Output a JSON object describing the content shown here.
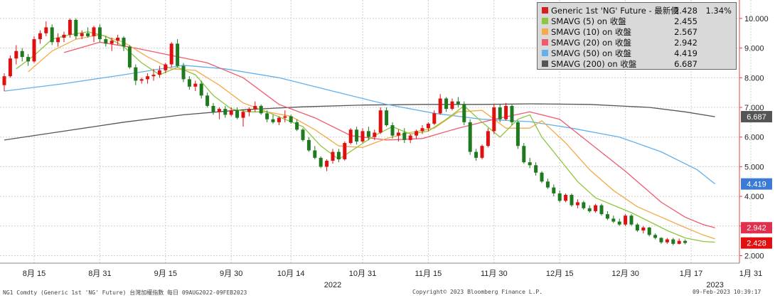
{
  "footer": {
    "left": "NG1 Comdty (Generic 1st 'NG' Future) 台灣加權指數  每日 09AUG2022-09FEB2023",
    "center": "Copyright© 2023 Bloomberg Finance L.P.",
    "right": "09-Feb-2023 10:39:17"
  },
  "legend": [
    {
      "name": "Generic 1st 'NG' Future - 最新價",
      "value": "2.428",
      "extra": "1.34%",
      "color": "#d62020"
    },
    {
      "name": "SMAVG (5)  on 收盤",
      "value": "2.455",
      "color": "#8dc63f"
    },
    {
      "name": "SMAVG (10)  on 收盤",
      "value": "2.567",
      "color": "#f5a94a"
    },
    {
      "name": "SMAVG (20)  on 收盤",
      "value": "2.942",
      "color": "#ef5a6f"
    },
    {
      "name": "SMAVG (50)  on 收盤",
      "value": "4.419",
      "color": "#62b1ee"
    },
    {
      "name": "SMAVG (200)  on 收盤",
      "value": "6.687",
      "color": "#555555"
    }
  ],
  "chart_data": {
    "type": "candlestick",
    "ylim": [
      1.8,
      10.6
    ],
    "yticks": [
      "2.000",
      "3.000",
      "4.000",
      "5.000",
      "6.000",
      "7.000",
      "8.000",
      "9.000",
      "10.000"
    ],
    "ytick_values": [
      2,
      3,
      4,
      5,
      6,
      7,
      8,
      9,
      10
    ],
    "xticks": [
      {
        "label": "8月 15",
        "x": 5
      },
      {
        "label": "8月 31",
        "x": 16
      },
      {
        "label": "9月 15",
        "x": 27
      },
      {
        "label": "9月 30",
        "x": 38
      },
      {
        "label": "10月 14",
        "x": 48
      },
      {
        "label": "10月 31",
        "x": 60
      },
      {
        "label": "11月 15",
        "x": 71
      },
      {
        "label": "11月 30",
        "x": 82
      },
      {
        "label": "12月 15",
        "x": 93
      },
      {
        "label": "12月 30",
        "x": 104
      },
      {
        "label": "1月 17",
        "x": 115
      },
      {
        "label": "1月 31",
        "x": 125
      }
    ],
    "years": [
      {
        "label": "2022",
        "x": 55
      },
      {
        "label": "2023",
        "x": 119
      }
    ],
    "ohlc": [
      [
        7.75,
        8.15,
        7.55,
        8.05
      ],
      [
        8.05,
        8.75,
        8.0,
        8.65
      ],
      [
        8.65,
        9.1,
        8.45,
        8.9
      ],
      [
        8.9,
        9.0,
        8.55,
        8.7
      ],
      [
        8.7,
        8.8,
        8.4,
        8.55
      ],
      [
        8.55,
        9.4,
        8.5,
        9.3
      ],
      [
        9.3,
        9.6,
        9.15,
        9.5
      ],
      [
        9.5,
        9.9,
        9.4,
        9.7
      ],
      [
        9.7,
        9.8,
        9.1,
        9.2
      ],
      [
        9.2,
        9.5,
        9.05,
        9.35
      ],
      [
        9.35,
        9.55,
        9.2,
        9.45
      ],
      [
        9.45,
        10.0,
        9.35,
        9.95
      ],
      [
        9.95,
        10.0,
        9.3,
        9.4
      ],
      [
        9.4,
        9.6,
        9.3,
        9.5
      ],
      [
        9.5,
        9.7,
        9.35,
        9.4
      ],
      [
        9.4,
        9.75,
        9.2,
        9.7
      ],
      [
        9.7,
        9.8,
        9.2,
        9.3
      ],
      [
        9.3,
        9.4,
        9.05,
        9.15
      ],
      [
        9.15,
        9.35,
        8.9,
        9.25
      ],
      [
        9.25,
        9.45,
        9.1,
        9.35
      ],
      [
        9.35,
        9.4,
        8.9,
        9.05
      ],
      [
        9.05,
        9.1,
        8.3,
        8.35
      ],
      [
        8.35,
        8.45,
        7.75,
        7.9
      ],
      [
        7.9,
        8.0,
        7.8,
        7.95
      ],
      [
        7.95,
        8.15,
        7.8,
        8.05
      ],
      [
        8.05,
        8.3,
        7.9,
        8.1
      ],
      [
        8.1,
        8.4,
        8.0,
        8.25
      ],
      [
        8.25,
        8.5,
        8.15,
        8.45
      ],
      [
        8.45,
        9.2,
        8.35,
        9.15
      ],
      [
        9.15,
        9.3,
        8.35,
        8.4
      ],
      [
        8.4,
        8.5,
        7.85,
        7.95
      ],
      [
        7.95,
        8.05,
        7.6,
        7.7
      ],
      [
        7.7,
        7.9,
        7.55,
        7.8
      ],
      [
        7.8,
        7.9,
        7.3,
        7.4
      ],
      [
        7.4,
        7.5,
        7.0,
        7.05
      ],
      [
        7.05,
        7.15,
        6.75,
        6.85
      ],
      [
        6.85,
        7.0,
        6.6,
        6.95
      ],
      [
        6.95,
        7.05,
        6.65,
        6.75
      ],
      [
        6.75,
        7.0,
        6.7,
        6.9
      ],
      [
        6.9,
        7.0,
        6.6,
        6.65
      ],
      [
        6.65,
        6.9,
        6.35,
        6.85
      ],
      [
        6.85,
        7.0,
        6.7,
        6.95
      ],
      [
        6.95,
        7.2,
        6.85,
        7.05
      ],
      [
        7.05,
        7.1,
        6.75,
        6.8
      ],
      [
        6.8,
        6.9,
        6.5,
        6.6
      ],
      [
        6.6,
        6.75,
        6.45,
        6.5
      ],
      [
        6.5,
        6.7,
        6.4,
        6.65
      ],
      [
        6.65,
        6.9,
        6.5,
        6.7
      ],
      [
        6.7,
        6.75,
        6.45,
        6.5
      ],
      [
        6.5,
        6.6,
        6.2,
        6.25
      ],
      [
        6.25,
        6.3,
        5.85,
        5.9
      ],
      [
        5.9,
        6.0,
        5.5,
        5.55
      ],
      [
        5.55,
        5.7,
        5.25,
        5.3
      ],
      [
        5.3,
        5.35,
        4.95,
        5.0
      ],
      [
        5.0,
        5.25,
        4.85,
        5.2
      ],
      [
        5.2,
        5.6,
        5.1,
        5.5
      ],
      [
        5.5,
        5.6,
        5.15,
        5.25
      ],
      [
        5.25,
        5.85,
        5.2,
        5.8
      ],
      [
        5.8,
        6.3,
        5.75,
        6.25
      ],
      [
        6.25,
        6.35,
        5.75,
        5.85
      ],
      [
        5.85,
        6.3,
        5.8,
        6.2
      ],
      [
        6.2,
        6.35,
        5.9,
        6.0
      ],
      [
        6.0,
        6.25,
        5.9,
        6.15
      ],
      [
        6.15,
        7.0,
        6.1,
        6.9
      ],
      [
        6.9,
        7.0,
        6.35,
        6.4
      ],
      [
        6.4,
        6.5,
        5.95,
        6.05
      ],
      [
        6.05,
        6.25,
        5.85,
        6.15
      ],
      [
        6.15,
        6.3,
        5.8,
        5.9
      ],
      [
        5.9,
        6.1,
        5.8,
        6.05
      ],
      [
        6.05,
        6.25,
        5.95,
        6.2
      ],
      [
        6.2,
        6.4,
        6.1,
        6.3
      ],
      [
        6.3,
        6.5,
        6.2,
        6.45
      ],
      [
        6.45,
        6.9,
        6.4,
        6.8
      ],
      [
        6.8,
        7.45,
        6.75,
        7.3
      ],
      [
        7.3,
        7.35,
        6.85,
        6.95
      ],
      [
        6.95,
        7.3,
        6.9,
        7.2
      ],
      [
        7.2,
        7.35,
        7.0,
        7.1
      ],
      [
        7.1,
        7.2,
        6.4,
        6.5
      ],
      [
        6.5,
        6.6,
        5.4,
        5.5
      ],
      [
        5.5,
        5.6,
        5.2,
        5.3
      ],
      [
        5.3,
        5.75,
        5.25,
        5.7
      ],
      [
        5.7,
        6.3,
        5.65,
        6.2
      ],
      [
        6.2,
        7.1,
        6.1,
        7.0
      ],
      [
        7.0,
        7.1,
        6.5,
        6.6
      ],
      [
        6.6,
        7.15,
        6.55,
        7.05
      ],
      [
        7.05,
        7.1,
        6.4,
        6.5
      ],
      [
        6.5,
        6.55,
        5.6,
        5.7
      ],
      [
        5.7,
        5.8,
        5.1,
        5.15
      ],
      [
        5.15,
        5.3,
        4.95,
        5.05
      ],
      [
        5.05,
        5.15,
        4.7,
        4.8
      ],
      [
        4.8,
        4.85,
        4.45,
        4.5
      ],
      [
        4.5,
        4.6,
        4.25,
        4.3
      ],
      [
        4.3,
        4.4,
        4.0,
        4.1
      ],
      [
        4.1,
        4.2,
        3.8,
        3.85
      ],
      [
        3.85,
        4.1,
        3.8,
        4.05
      ],
      [
        4.05,
        4.1,
        3.65,
        3.7
      ],
      [
        3.7,
        3.9,
        3.6,
        3.8
      ],
      [
        3.8,
        3.85,
        3.55,
        3.6
      ],
      [
        3.6,
        3.7,
        3.45,
        3.5
      ],
      [
        3.5,
        3.75,
        3.45,
        3.7
      ],
      [
        3.7,
        3.75,
        3.35,
        3.4
      ],
      [
        3.4,
        3.5,
        3.2,
        3.25
      ],
      [
        3.25,
        3.35,
        3.1,
        3.15
      ],
      [
        3.15,
        3.25,
        3.0,
        3.05
      ],
      [
        3.05,
        3.4,
        3.0,
        3.35
      ],
      [
        3.35,
        3.4,
        3.0,
        3.05
      ],
      [
        3.05,
        3.1,
        2.8,
        2.85
      ],
      [
        2.85,
        3.0,
        2.75,
        2.95
      ],
      [
        2.95,
        2.97,
        2.65,
        2.7
      ],
      [
        2.7,
        2.75,
        2.55,
        2.6
      ],
      [
        2.6,
        2.62,
        2.4,
        2.45
      ],
      [
        2.45,
        2.6,
        2.4,
        2.55
      ],
      [
        2.55,
        2.6,
        2.35,
        2.4
      ],
      [
        2.4,
        2.58,
        2.38,
        2.5
      ],
      [
        2.5,
        2.55,
        2.38,
        2.428
      ]
    ],
    "series": [
      {
        "name": "SMAVG (5)  on 收盤",
        "color": "#8dc63f",
        "values": [
          [
            2,
            8.3
          ],
          [
            5,
            8.75
          ],
          [
            8,
            9.3
          ],
          [
            11,
            9.45
          ],
          [
            14,
            9.55
          ],
          [
            17,
            9.4
          ],
          [
            20,
            9.05
          ],
          [
            23,
            8.5
          ],
          [
            26,
            8.1
          ],
          [
            29,
            8.35
          ],
          [
            32,
            8.1
          ],
          [
            35,
            7.4
          ],
          [
            38,
            6.95
          ],
          [
            41,
            6.85
          ],
          [
            44,
            6.85
          ],
          [
            47,
            6.6
          ],
          [
            50,
            6.35
          ],
          [
            53,
            5.7
          ],
          [
            56,
            5.25
          ],
          [
            59,
            5.65
          ],
          [
            62,
            6.05
          ],
          [
            65,
            6.35
          ],
          [
            68,
            6.1
          ],
          [
            71,
            6.2
          ],
          [
            74,
            6.6
          ],
          [
            77,
            7.05
          ],
          [
            80,
            6.5
          ],
          [
            83,
            6.0
          ],
          [
            86,
            6.6
          ],
          [
            88,
            6.75
          ],
          [
            90,
            6.0
          ],
          [
            93,
            5.25
          ],
          [
            96,
            4.5
          ],
          [
            99,
            3.95
          ],
          [
            102,
            3.7
          ],
          [
            105,
            3.45
          ],
          [
            108,
            3.15
          ],
          [
            111,
            2.85
          ],
          [
            114,
            2.6
          ],
          [
            117,
            2.48
          ],
          [
            119,
            2.455
          ]
        ]
      },
      {
        "name": "SMAVG (10)  on 收盤",
        "color": "#f5a94a",
        "values": [
          [
            4,
            8.2
          ],
          [
            8,
            8.9
          ],
          [
            12,
            9.3
          ],
          [
            16,
            9.45
          ],
          [
            20,
            9.2
          ],
          [
            24,
            8.7
          ],
          [
            28,
            8.3
          ],
          [
            32,
            8.25
          ],
          [
            36,
            7.75
          ],
          [
            40,
            7.15
          ],
          [
            44,
            6.85
          ],
          [
            48,
            6.7
          ],
          [
            52,
            6.25
          ],
          [
            56,
            5.7
          ],
          [
            60,
            5.65
          ],
          [
            64,
            5.95
          ],
          [
            68,
            6.15
          ],
          [
            72,
            6.3
          ],
          [
            76,
            6.85
          ],
          [
            80,
            6.9
          ],
          [
            84,
            6.3
          ],
          [
            88,
            6.3
          ],
          [
            90,
            6.55
          ],
          [
            94,
            5.8
          ],
          [
            98,
            4.9
          ],
          [
            102,
            4.2
          ],
          [
            106,
            3.65
          ],
          [
            110,
            3.3
          ],
          [
            114,
            2.95
          ],
          [
            117,
            2.7
          ],
          [
            119,
            2.567
          ]
        ]
      },
      {
        "name": "SMAVG (20)  on 收盤",
        "color": "#ef5a6f",
        "values": [
          [
            10,
            8.85
          ],
          [
            16,
            9.2
          ],
          [
            22,
            9.0
          ],
          [
            28,
            8.75
          ],
          [
            34,
            8.5
          ],
          [
            40,
            8.0
          ],
          [
            46,
            7.1
          ],
          [
            52,
            6.65
          ],
          [
            58,
            6.05
          ],
          [
            64,
            5.9
          ],
          [
            70,
            5.95
          ],
          [
            76,
            6.3
          ],
          [
            82,
            6.6
          ],
          [
            88,
            6.85
          ],
          [
            93,
            6.6
          ],
          [
            98,
            5.8
          ],
          [
            104,
            4.85
          ],
          [
            110,
            3.8
          ],
          [
            114,
            3.3
          ],
          [
            117,
            3.05
          ],
          [
            119,
            2.942
          ]
        ]
      },
      {
        "name": "SMAVG (50)  on 收盤",
        "color": "#62b1ee",
        "values": [
          [
            0,
            7.55
          ],
          [
            10,
            7.8
          ],
          [
            20,
            8.1
          ],
          [
            30,
            8.42
          ],
          [
            37,
            8.3
          ],
          [
            46,
            8.0
          ],
          [
            55,
            7.55
          ],
          [
            64,
            7.1
          ],
          [
            72,
            6.8
          ],
          [
            80,
            6.6
          ],
          [
            88,
            6.52
          ],
          [
            95,
            6.3
          ],
          [
            103,
            6.0
          ],
          [
            110,
            5.5
          ],
          [
            116,
            4.9
          ],
          [
            119,
            4.419
          ]
        ]
      },
      {
        "name": "SMAVG (200)  on 收盤",
        "color": "#555555",
        "values": [
          [
            0,
            5.9
          ],
          [
            10,
            6.2
          ],
          [
            20,
            6.5
          ],
          [
            30,
            6.75
          ],
          [
            40,
            6.92
          ],
          [
            50,
            7.02
          ],
          [
            60,
            7.08
          ],
          [
            70,
            7.1
          ],
          [
            80,
            7.1
          ],
          [
            88,
            7.12
          ],
          [
            98,
            7.1
          ],
          [
            108,
            7.0
          ],
          [
            114,
            6.85
          ],
          [
            119,
            6.687
          ]
        ]
      }
    ],
    "markers": [
      {
        "value": 6.687,
        "label": "6.687",
        "color": "#555555"
      },
      {
        "value": 4.419,
        "label": "4.419",
        "color": "#3b7bd6"
      },
      {
        "value": 2.942,
        "label": "2.942",
        "color": "#e0304e"
      },
      {
        "value": 2.428,
        "label": "2.428",
        "color": "#e01010"
      }
    ],
    "up_color": "#e01010",
    "down_color": "#1f7a1f",
    "grid": true
  }
}
